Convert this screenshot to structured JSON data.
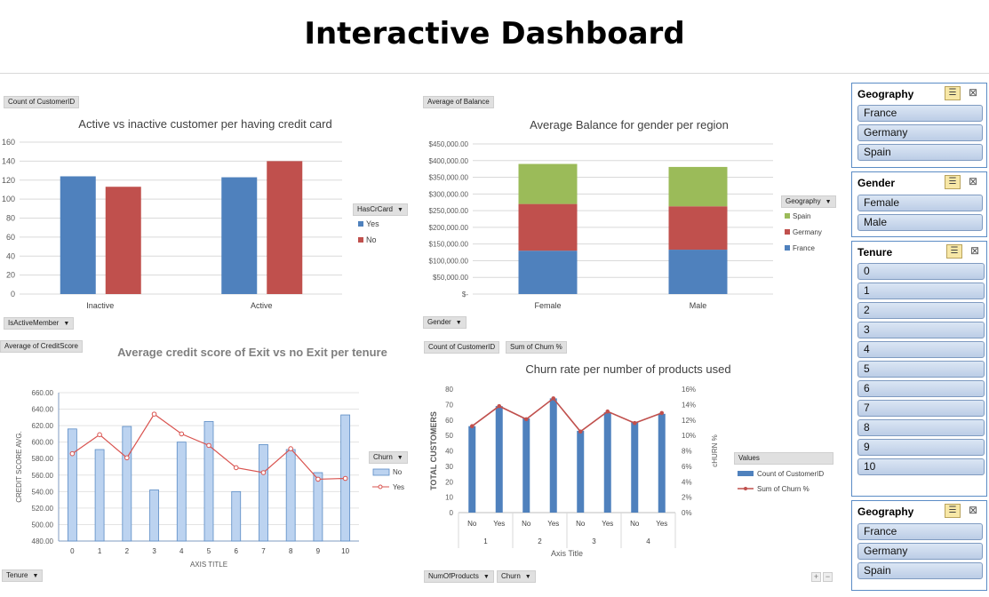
{
  "page": {
    "title": "Interactive Dashboard"
  },
  "chart_buttons": {
    "count_customerid": "Count of CustomerID",
    "has_cr_card": "HasCrCard",
    "is_active_member": "IsActiveMember",
    "average_balance": "Average of Balance",
    "geography": "Geography",
    "gender": "Gender",
    "average_credit_score": "Average of CreditScore",
    "churn": "Churn",
    "tenure": "Tenure",
    "count_customerid2": "Count of CustomerID",
    "sum_churn": "Sum of Churn %",
    "values": "Values",
    "num_of_products": "NumOfProducts",
    "churn2": "Churn"
  },
  "slicers": {
    "geography": {
      "title": "Geography",
      "items": [
        "France",
        "Germany",
        "Spain"
      ]
    },
    "gender": {
      "title": "Gender",
      "items": [
        "Female",
        "Male"
      ]
    },
    "tenure": {
      "title": "Tenure",
      "items": [
        "0",
        "1",
        "2",
        "3",
        "4",
        "5",
        "6",
        "7",
        "8",
        "9",
        "10"
      ]
    },
    "geography2": {
      "title": "Geography",
      "items": [
        "France",
        "Germany",
        "Spain"
      ]
    }
  },
  "chart_data": [
    {
      "type": "bar",
      "title": "Active vs inactive customer per having credit card",
      "categories": [
        "Inactive",
        "Active"
      ],
      "series": [
        {
          "name": "Yes",
          "values": [
            124,
            123
          ]
        },
        {
          "name": "No",
          "values": [
            113,
            140
          ]
        }
      ],
      "ylim": [
        0,
        160
      ],
      "yticks": [
        "0",
        "20",
        "40",
        "60",
        "80",
        "100",
        "120",
        "140",
        "160"
      ],
      "legend_title": "HasCrCard",
      "legend_position": "right",
      "colors": [
        "#4f81bd",
        "#c0504d"
      ]
    },
    {
      "type": "bar",
      "stacked": true,
      "title": "Average Balance for gender per region",
      "categories": [
        "Female",
        "Male"
      ],
      "series": [
        {
          "name": "France",
          "values": [
            130000,
            133000
          ]
        },
        {
          "name": "Germany",
          "values": [
            140000,
            130000
          ]
        },
        {
          "name": "Spain",
          "values": [
            120000,
            118000
          ]
        }
      ],
      "ylim": [
        0,
        450000
      ],
      "yticks": [
        "$-",
        "$50,000.00",
        "$100,000.00",
        "$150,000.00",
        "$200,000.00",
        "$250,000.00",
        "$300,000.00",
        "$350,000.00",
        "$400,000.00",
        "$450,000.00"
      ],
      "legend_title": "Geography",
      "legend_order": [
        "Spain",
        "Germany",
        "France"
      ],
      "legend_position": "right",
      "colors": [
        "#4f81bd",
        "#c0504d",
        "#9bbb59"
      ]
    },
    {
      "type": "bar",
      "title": "Average credit score of Exit vs no Exit per tenure",
      "xlabel": "AXIS TITLE",
      "ylabel": "CREDIT SCORE AVG.",
      "categories": [
        "0",
        "1",
        "2",
        "3",
        "4",
        "5",
        "6",
        "7",
        "8",
        "9",
        "10"
      ],
      "series": [
        {
          "name": "No",
          "kind": "bar",
          "values": [
            616,
            591,
            619,
            542,
            600,
            625,
            540,
            597,
            591,
            563,
            633
          ]
        },
        {
          "name": "Yes",
          "kind": "line",
          "values": [
            586,
            609,
            581,
            634,
            610,
            596,
            569,
            563,
            592,
            555,
            556
          ]
        }
      ],
      "ylim": [
        480,
        660
      ],
      "yticks": [
        "480.00",
        "500.00",
        "520.00",
        "540.00",
        "560.00",
        "580.00",
        "600.00",
        "620.00",
        "640.00",
        "660.00"
      ],
      "legend_title": "Churn",
      "legend_position": "right",
      "colors": [
        "#bcd3f0",
        "#d9534f"
      ]
    },
    {
      "type": "bar",
      "title": "Churn rate per number of products used",
      "xlabel": "Axis Title",
      "ylabel": "TOTAL CUSTOMERS",
      "y2label": "cHURN %",
      "categories": [
        "No",
        "Yes",
        "No",
        "Yes",
        "No",
        "Yes",
        "No",
        "Yes"
      ],
      "groups": [
        "1",
        "2",
        "3",
        "4"
      ],
      "series": [
        {
          "name": "Count of CustomerID",
          "kind": "bar",
          "values": [
            56,
            69,
            61,
            74,
            53,
            65,
            59,
            64
          ]
        },
        {
          "name": "Sum of Churn %",
          "kind": "line",
          "axis": "secondary",
          "values": [
            11.2,
            13.8,
            12.1,
            14.8,
            10.5,
            13.1,
            11.6,
            12.9
          ]
        }
      ],
      "ylim": [
        0,
        80
      ],
      "y2lim": [
        0,
        16
      ],
      "yticks": [
        "0",
        "10",
        "20",
        "30",
        "40",
        "50",
        "60",
        "70",
        "80"
      ],
      "y2ticks": [
        "0%",
        "2%",
        "4%",
        "6%",
        "8%",
        "10%",
        "12%",
        "14%",
        "16%"
      ],
      "legend_title": "Values",
      "legend_position": "right",
      "colors": [
        "#4f81bd",
        "#c0504d"
      ]
    }
  ]
}
